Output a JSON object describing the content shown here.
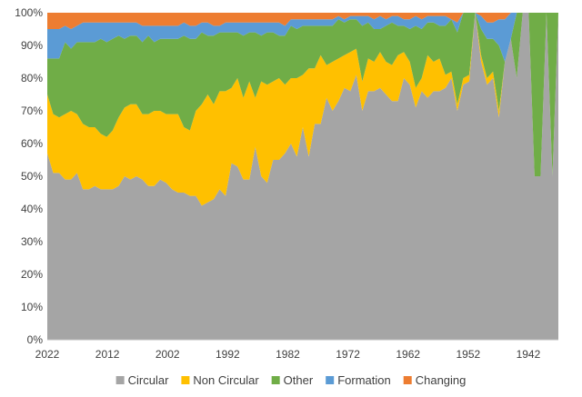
{
  "chart_data": {
    "type": "area",
    "stacking": "percent",
    "title": "",
    "xlabel": "",
    "ylabel": "",
    "x_tick_labels": [
      "2022",
      "2012",
      "2002",
      "1992",
      "1982",
      "1972",
      "1962",
      "1952",
      "1942"
    ],
    "y_tick_labels": [
      "0%",
      "10%",
      "20%",
      "30%",
      "40%",
      "50%",
      "60%",
      "70%",
      "80%",
      "90%",
      "100%"
    ],
    "ylim": [
      0,
      100
    ],
    "legend_position": "bottom",
    "x_start": 2022,
    "x_end": 1937,
    "year_step": 1,
    "series": [
      {
        "name": "Circular",
        "color": "#a5a5a5",
        "values": [
          57,
          51,
          51,
          49,
          49,
          51,
          46,
          46,
          47,
          46,
          46,
          46,
          47,
          50,
          49,
          50,
          49,
          47,
          47,
          49,
          48,
          46,
          45,
          45,
          44,
          44,
          41,
          42,
          43,
          46,
          44,
          54,
          53,
          49,
          49,
          59,
          50,
          48,
          55,
          55,
          57,
          60,
          56,
          65,
          56,
          66,
          66,
          74,
          70,
          73,
          77,
          76,
          81,
          70,
          76,
          76,
          77,
          75,
          73,
          73,
          80,
          78,
          71,
          76,
          74,
          76,
          76,
          77,
          80,
          70,
          78,
          79,
          100,
          85,
          78,
          80,
          68,
          85,
          92,
          80,
          100,
          100,
          50,
          50,
          100,
          50,
          100
        ]
      },
      {
        "name": "Non Circular",
        "color": "#ffc000",
        "values": [
          18,
          18,
          17,
          20,
          21,
          18,
          20,
          19,
          18,
          17,
          16,
          18,
          21,
          21,
          23,
          22,
          20,
          22,
          23,
          21,
          21,
          23,
          24,
          20,
          20,
          26,
          31,
          33,
          29,
          30,
          32,
          23,
          27,
          25,
          30,
          15,
          29,
          30,
          24,
          25,
          21,
          20,
          24,
          16,
          27,
          17,
          21,
          10,
          15,
          13,
          10,
          12,
          8,
          9,
          10,
          9,
          11,
          10,
          11,
          14,
          8,
          7,
          6,
          4,
          13,
          9,
          10,
          4,
          2,
          2,
          2,
          2,
          0,
          2,
          2,
          2,
          2,
          0,
          0,
          0,
          0,
          0,
          0,
          0,
          0,
          0,
          0
        ]
      },
      {
        "name": "Other",
        "color": "#70ad47",
        "values": [
          11,
          17,
          18,
          22,
          19,
          22,
          25,
          26,
          26,
          29,
          29,
          28,
          25,
          21,
          21,
          21,
          22,
          24,
          21,
          22,
          23,
          23,
          23,
          28,
          28,
          22,
          22,
          18,
          21,
          18,
          18,
          17,
          14,
          19,
          15,
          20,
          14,
          16,
          15,
          13,
          15,
          16,
          15,
          15,
          13,
          13,
          9,
          12,
          11,
          12,
          10,
          10,
          9,
          17,
          11,
          10,
          7,
          11,
          13,
          9,
          8,
          10,
          19,
          15,
          10,
          12,
          10,
          15,
          16,
          22,
          20,
          19,
          0,
          8,
          12,
          10,
          20,
          0,
          0,
          20,
          0,
          0,
          50,
          50,
          0,
          50,
          0
        ]
      },
      {
        "name": "Formation",
        "color": "#5b9bd5",
        "values": [
          9,
          9,
          9,
          5,
          6,
          5,
          6,
          6,
          6,
          5,
          6,
          5,
          4,
          5,
          4,
          4,
          5,
          3,
          5,
          4,
          4,
          4,
          4,
          4,
          4,
          4,
          3,
          4,
          3,
          2,
          3,
          3,
          3,
          4,
          3,
          3,
          4,
          3,
          3,
          4,
          3,
          2,
          3,
          2,
          2,
          2,
          2,
          2,
          2,
          1,
          1,
          1,
          1,
          3,
          2,
          3,
          4,
          2,
          2,
          3,
          2,
          3,
          3,
          3,
          2,
          2,
          3,
          3,
          0,
          3,
          0,
          0,
          0,
          4,
          5,
          5,
          8,
          13,
          8,
          0,
          0,
          0,
          0,
          0,
          0,
          0,
          0
        ]
      },
      {
        "name": "Changing",
        "color": "#ed7d31",
        "values": [
          5,
          5,
          5,
          4,
          5,
          4,
          3,
          3,
          3,
          3,
          3,
          3,
          3,
          3,
          3,
          3,
          4,
          4,
          4,
          4,
          4,
          4,
          4,
          3,
          4,
          4,
          3,
          3,
          4,
          4,
          3,
          3,
          3,
          3,
          3,
          3,
          3,
          3,
          3,
          3,
          4,
          2,
          2,
          2,
          2,
          2,
          2,
          2,
          2,
          1,
          2,
          1,
          1,
          1,
          1,
          2,
          1,
          2,
          1,
          1,
          2,
          2,
          1,
          2,
          1,
          1,
          1,
          1,
          2,
          3,
          0,
          0,
          0,
          1,
          3,
          3,
          2,
          2,
          0,
          0,
          0,
          0,
          0,
          0,
          0,
          0,
          0
        ]
      }
    ]
  }
}
